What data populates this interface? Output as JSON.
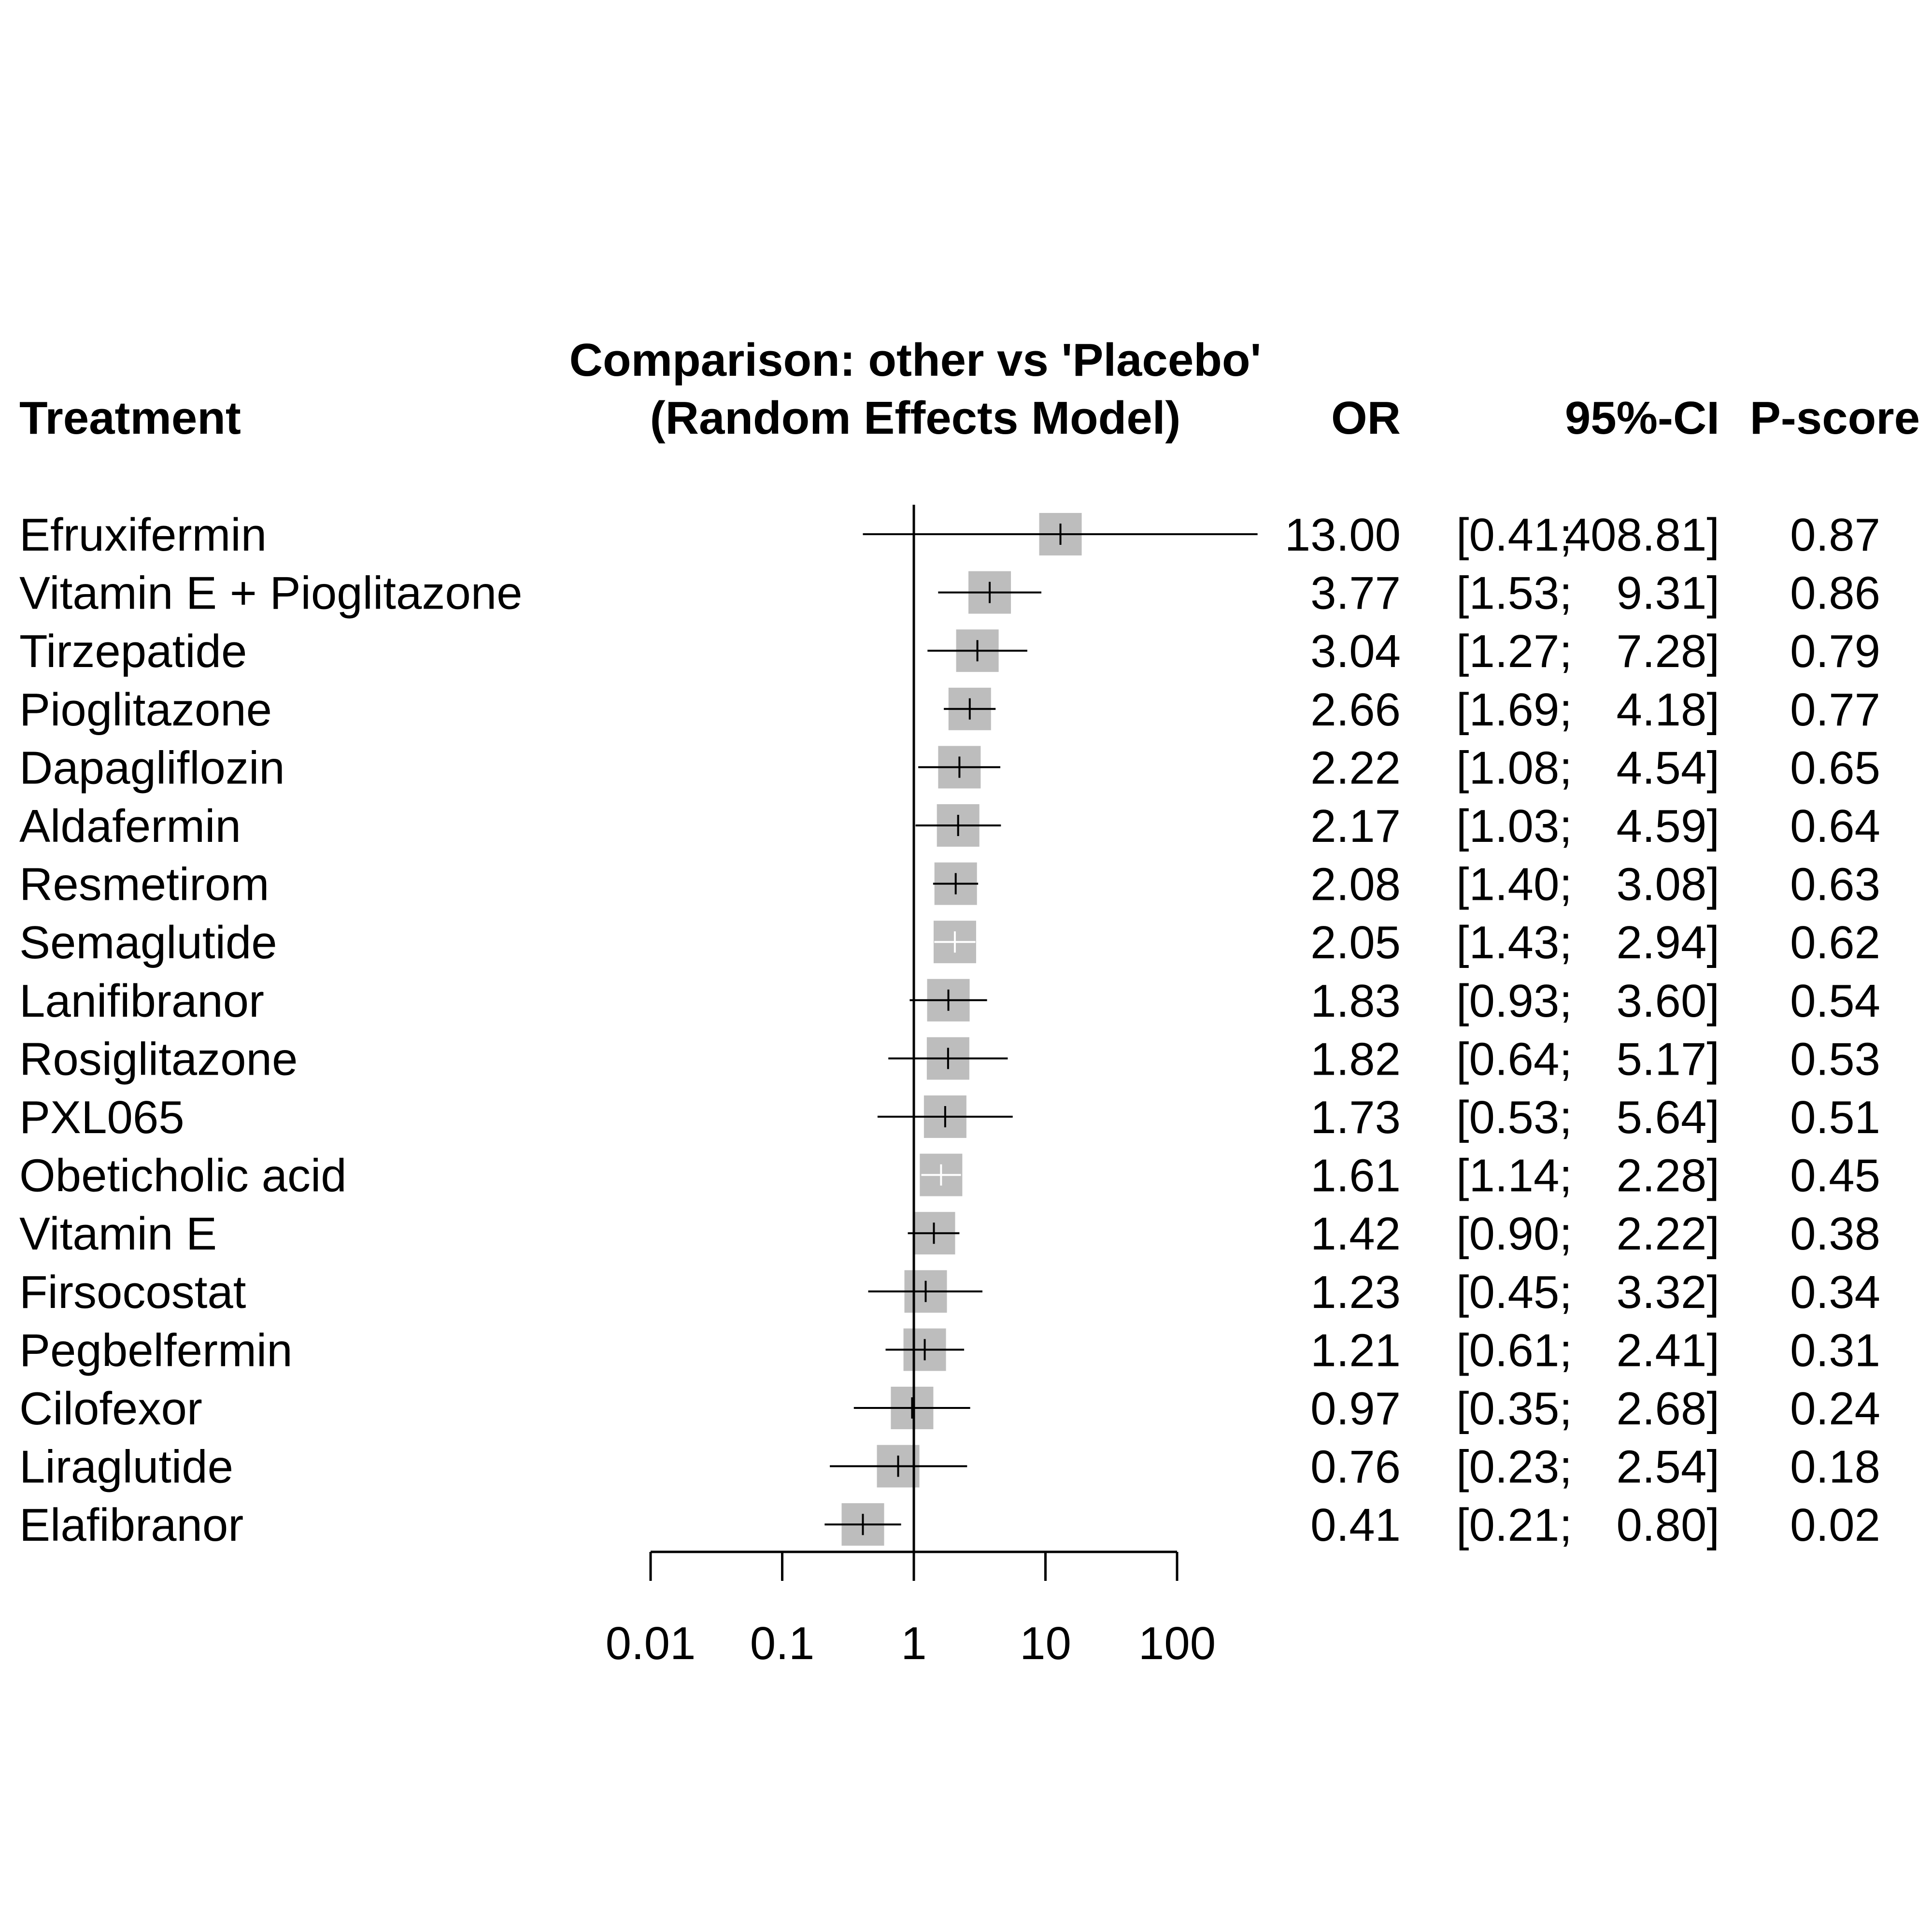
{
  "colors": {
    "box": "#bdbdbd",
    "line": "#000000",
    "inner_light": "#ffffff",
    "text": "#000000"
  },
  "chart_data": {
    "type": "forest",
    "title": "Comparison: other vs 'Placebo'",
    "subtitle": "(Random Effects Model)",
    "columns": {
      "treatment": "Treatment",
      "or": "OR",
      "ci": "95%-CI",
      "pscore": "P-score"
    },
    "x_scale": "log",
    "xlim": [
      0.01,
      100
    ],
    "reference_line": 1,
    "ticks": [
      {
        "value": 0.01,
        "label": "0.01"
      },
      {
        "value": 0.1,
        "label": "0.1"
      },
      {
        "value": 1,
        "label": "1"
      },
      {
        "value": 10,
        "label": "10"
      },
      {
        "value": 100,
        "label": "100"
      }
    ],
    "rows": [
      {
        "treatment": "Efruxifermin",
        "or": 13.0,
        "lower": 0.41,
        "upper": 408.81,
        "or_text": "13.00",
        "lower_text": "[0.41;",
        "upper_text": "408.81]",
        "pscore": "0.87"
      },
      {
        "treatment": "Vitamin E + Pioglitazone",
        "or": 3.77,
        "lower": 1.53,
        "upper": 9.31,
        "or_text": "3.77",
        "lower_text": "[1.53;",
        "upper_text": "9.31]",
        "pscore": "0.86"
      },
      {
        "treatment": "Tirzepatide",
        "or": 3.04,
        "lower": 1.27,
        "upper": 7.28,
        "or_text": "3.04",
        "lower_text": "[1.27;",
        "upper_text": "7.28]",
        "pscore": "0.79"
      },
      {
        "treatment": "Pioglitazone",
        "or": 2.66,
        "lower": 1.69,
        "upper": 4.18,
        "or_text": "2.66",
        "lower_text": "[1.69;",
        "upper_text": "4.18]",
        "pscore": "0.77"
      },
      {
        "treatment": "Dapagliflozin",
        "or": 2.22,
        "lower": 1.08,
        "upper": 4.54,
        "or_text": "2.22",
        "lower_text": "[1.08;",
        "upper_text": "4.54]",
        "pscore": "0.65"
      },
      {
        "treatment": "Aldafermin",
        "or": 2.17,
        "lower": 1.03,
        "upper": 4.59,
        "or_text": "2.17",
        "lower_text": "[1.03;",
        "upper_text": "4.59]",
        "pscore": "0.64"
      },
      {
        "treatment": "Resmetirom",
        "or": 2.08,
        "lower": 1.4,
        "upper": 3.08,
        "or_text": "2.08",
        "lower_text": "[1.40;",
        "upper_text": "3.08]",
        "pscore": "0.63"
      },
      {
        "treatment": "Semaglutide",
        "or": 2.05,
        "lower": 1.43,
        "upper": 2.94,
        "or_text": "2.05",
        "lower_text": "[1.43;",
        "upper_text": "2.94]",
        "pscore": "0.62"
      },
      {
        "treatment": "Lanifibranor",
        "or": 1.83,
        "lower": 0.93,
        "upper": 3.6,
        "or_text": "1.83",
        "lower_text": "[0.93;",
        "upper_text": "3.60]",
        "pscore": "0.54"
      },
      {
        "treatment": "Rosiglitazone",
        "or": 1.82,
        "lower": 0.64,
        "upper": 5.17,
        "or_text": "1.82",
        "lower_text": "[0.64;",
        "upper_text": "5.17]",
        "pscore": "0.53"
      },
      {
        "treatment": "PXL065",
        "or": 1.73,
        "lower": 0.53,
        "upper": 5.64,
        "or_text": "1.73",
        "lower_text": "[0.53;",
        "upper_text": "5.64]",
        "pscore": "0.51"
      },
      {
        "treatment": "Obeticholic acid",
        "or": 1.61,
        "lower": 1.14,
        "upper": 2.28,
        "or_text": "1.61",
        "lower_text": "[1.14;",
        "upper_text": "2.28]",
        "pscore": "0.45"
      },
      {
        "treatment": "Vitamin E",
        "or": 1.42,
        "lower": 0.9,
        "upper": 2.22,
        "or_text": "1.42",
        "lower_text": "[0.90;",
        "upper_text": "2.22]",
        "pscore": "0.38"
      },
      {
        "treatment": "Firsocostat",
        "or": 1.23,
        "lower": 0.45,
        "upper": 3.32,
        "or_text": "1.23",
        "lower_text": "[0.45;",
        "upper_text": "3.32]",
        "pscore": "0.34"
      },
      {
        "treatment": "Pegbelfermin",
        "or": 1.21,
        "lower": 0.61,
        "upper": 2.41,
        "or_text": "1.21",
        "lower_text": "[0.61;",
        "upper_text": "2.41]",
        "pscore": "0.31"
      },
      {
        "treatment": "Cilofexor",
        "or": 0.97,
        "lower": 0.35,
        "upper": 2.68,
        "or_text": "0.97",
        "lower_text": "[0.35;",
        "upper_text": "2.68]",
        "pscore": "0.24"
      },
      {
        "treatment": "Liraglutide",
        "or": 0.76,
        "lower": 0.23,
        "upper": 2.54,
        "or_text": "0.76",
        "lower_text": "[0.23;",
        "upper_text": "2.54]",
        "pscore": "0.18"
      },
      {
        "treatment": "Elafibranor",
        "or": 0.41,
        "lower": 0.21,
        "upper": 0.8,
        "or_text": "0.41",
        "lower_text": "[0.21;",
        "upper_text": "0.80]",
        "pscore": "0.02"
      }
    ]
  }
}
